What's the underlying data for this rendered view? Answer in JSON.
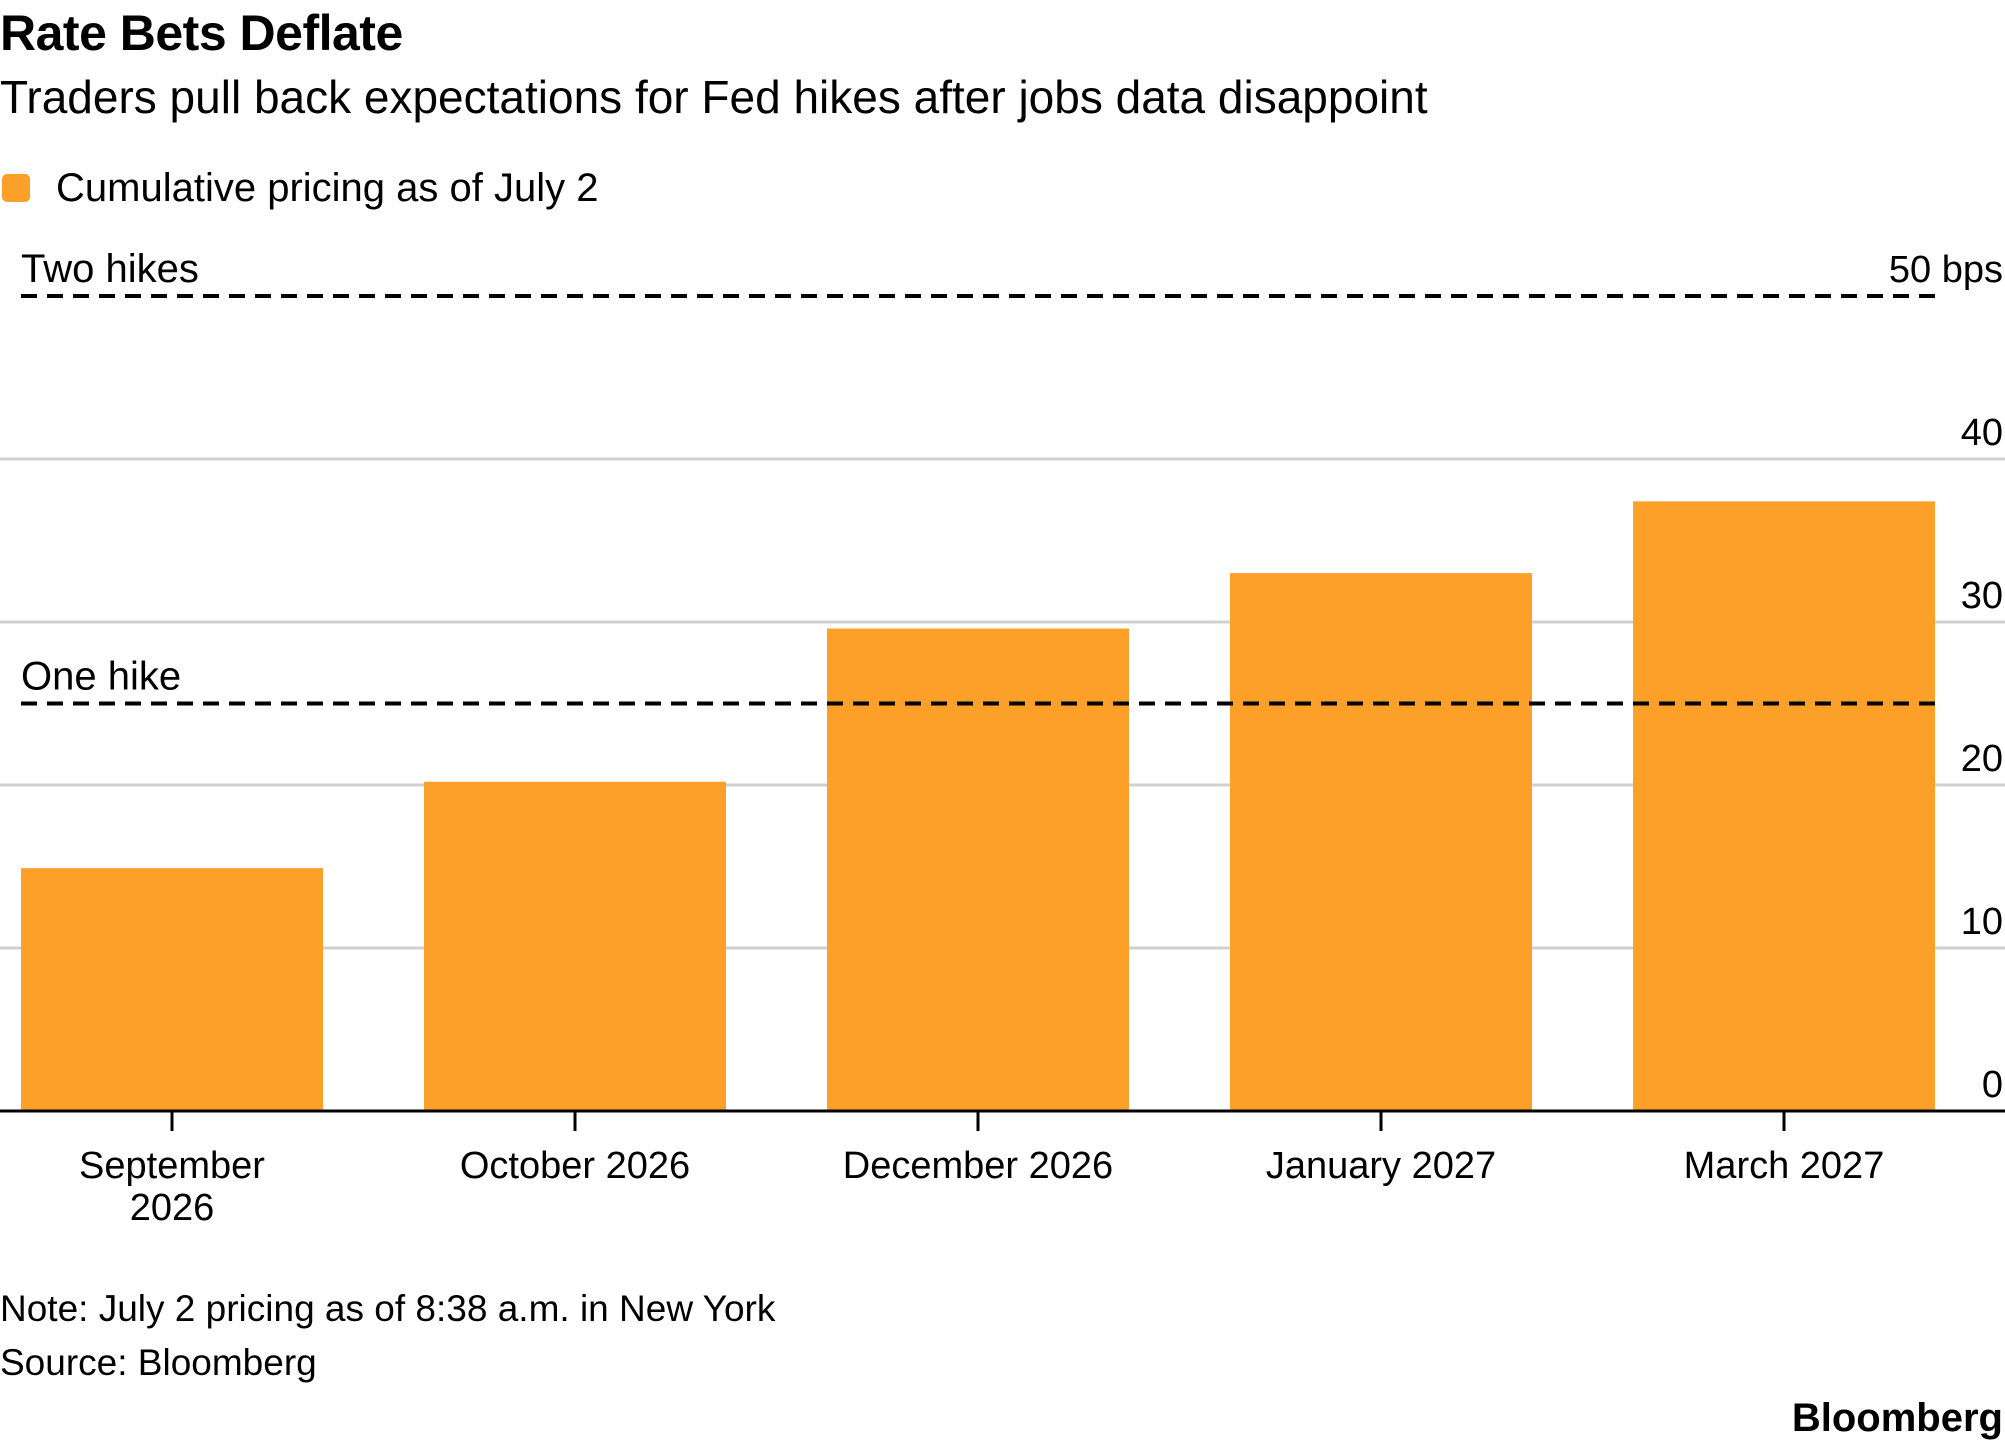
{
  "header": {
    "title": "Rate Bets Deflate",
    "subtitle": "Traders pull back expectations for Fed hikes after jobs data disappoint"
  },
  "footer": {
    "note": "Note: July 2 pricing as of 8:38 a.m. in New York",
    "source": "Source: Bloomberg",
    "brand": "Bloomberg"
  },
  "colors": {
    "bar": "#FCA02A",
    "grid": "#D0D0D0",
    "axis": "#000000"
  },
  "chart_data": {
    "type": "bar",
    "title": "Rate Bets Deflate",
    "subtitle": "Traders pull back expectations for Fed hikes after jobs data disappoint",
    "categories": [
      [
        "September",
        "2026"
      ],
      [
        "October 2026"
      ],
      [
        "December 2026"
      ],
      [
        "January 2027"
      ],
      [
        "March 2027"
      ]
    ],
    "series": [
      {
        "name": "Cumulative pricing as of July 2",
        "values": [
          14.9,
          20.2,
          29.6,
          33.0,
          37.4
        ]
      }
    ],
    "ylim": [
      0,
      50
    ],
    "yticks": [
      0,
      10,
      20,
      30,
      40,
      50
    ],
    "ytick_labels": [
      "0",
      "10",
      "20",
      "30",
      "40",
      "50 bps"
    ],
    "y_axis_side": "right",
    "grid": true,
    "legend": "top-left",
    "reference_lines": [
      {
        "label": "Two hikes",
        "value": 50,
        "style": "dashed"
      },
      {
        "label": "One hike",
        "value": 25,
        "style": "dashed"
      }
    ]
  }
}
